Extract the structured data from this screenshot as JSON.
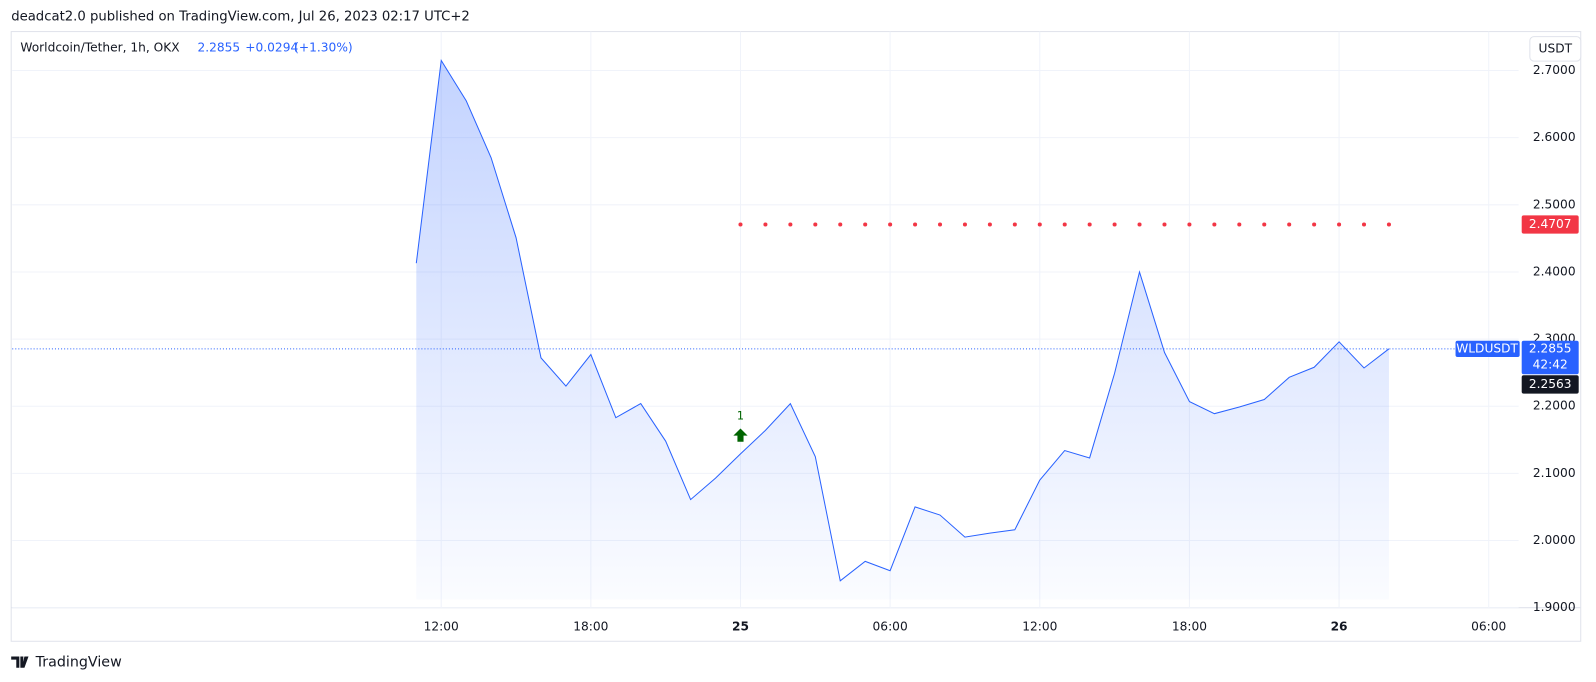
{
  "header": {
    "text": "deadcat2.0 published on TradingView.com, Jul 26, 2023 02:17 UTC+2"
  },
  "legend": {
    "symbol": "Worldcoin/Tether, 1h, OKX",
    "change": "+0.0294",
    "change_percent": "(+1.30%)"
  },
  "currency_button": "USDT",
  "price_label": {
    "symbol": "WLDUSDT",
    "countdown": "42:42",
    "other_price": 2.2563
  },
  "footer": {
    "brand": "TradingView"
  },
  "chart_data": {
    "type": "line",
    "x": [
      0,
      1,
      2,
      3,
      4,
      5,
      6,
      7,
      8,
      9,
      10,
      11,
      12,
      13,
      14,
      15,
      16,
      17,
      18,
      19,
      20,
      21,
      22,
      23,
      24,
      25,
      26,
      27,
      28,
      29,
      30,
      31,
      32,
      33,
      34,
      35,
      36,
      37,
      38,
      39
    ],
    "series": [
      {
        "color": "#2962ff",
        "style": "area",
        "values": [
          2.413,
          2.715,
          2.655,
          2.57,
          2.451,
          2.272,
          2.23,
          2.277,
          2.183,
          2.204,
          2.148,
          2.061,
          2.093,
          2.129,
          2.164,
          2.204,
          2.125,
          1.94,
          1.969,
          1.955,
          2.05,
          2.038,
          2.005,
          2.011,
          2.016,
          2.09,
          2.134,
          2.123,
          2.249,
          2.4,
          2.28,
          2.207,
          2.189,
          2.199,
          2.21,
          2.243,
          2.258,
          2.296,
          2.257,
          2.2855
        ]
      },
      {
        "color": "#f23645",
        "style": "dots",
        "values": [
          null,
          null,
          null,
          null,
          null,
          null,
          null,
          null,
          null,
          null,
          null,
          null,
          null,
          2.4707,
          2.4707,
          2.4707,
          2.4707,
          2.4707,
          2.4707,
          2.4707,
          2.4707,
          2.4707,
          2.4707,
          2.4707,
          2.4707,
          2.4707,
          2.4707,
          2.4707,
          2.4707,
          2.4707,
          2.4707,
          2.4707,
          2.4707,
          2.4707,
          2.4707,
          2.4707,
          2.4707,
          2.4707,
          2.4707,
          2.4707
        ]
      }
    ],
    "signals": [
      {
        "x": 13,
        "label": "1",
        "color": "#006400"
      }
    ],
    "xlim": [
      -16.2,
      44.2
    ],
    "xticks": [
      {
        "value": 1,
        "label": "12:00"
      },
      {
        "value": 7,
        "label": "18:00"
      },
      {
        "value": 13,
        "label": "25"
      },
      {
        "value": 19,
        "label": "06:00"
      },
      {
        "value": 25,
        "label": "12:00"
      },
      {
        "value": 31,
        "label": "18:00"
      },
      {
        "value": 37,
        "label": "26"
      },
      {
        "value": 43,
        "label": "06:00"
      }
    ],
    "ylim": [
      1.9,
      2.758
    ],
    "yticks": [
      {
        "value": 1.9,
        "label": "1.9000"
      },
      {
        "value": 2.0,
        "label": "2.0000"
      },
      {
        "value": 2.1,
        "label": "2.1000"
      },
      {
        "value": 2.2,
        "label": "2.2000"
      },
      {
        "value": 2.3,
        "label": "2.3000"
      },
      {
        "value": 2.4,
        "label": "2.4000"
      },
      {
        "value": 2.5,
        "label": "2.5000"
      },
      {
        "value": 2.6,
        "label": "2.6000"
      },
      {
        "value": 2.7,
        "label": "2.7000"
      }
    ],
    "grid": true
  }
}
